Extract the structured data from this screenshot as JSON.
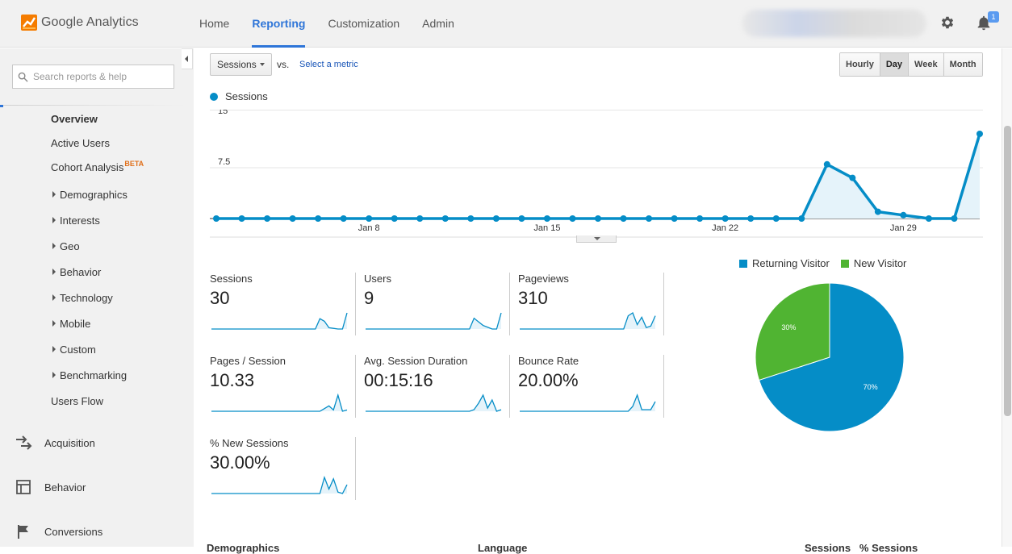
{
  "app": {
    "name": "Google Analytics"
  },
  "nav": [
    {
      "label": "Home",
      "active": false
    },
    {
      "label": "Reporting",
      "active": true
    },
    {
      "label": "Customization",
      "active": false
    },
    {
      "label": "Admin",
      "active": false
    }
  ],
  "notifications": {
    "badge": "1"
  },
  "sidebar": {
    "search_placeholder": "Search reports & help",
    "sub_items": [
      {
        "label": "Overview",
        "bold": true
      },
      {
        "label": "Active Users"
      },
      {
        "label": "Cohort Analysis",
        "badge": "BETA"
      }
    ],
    "caret_items": [
      "Demographics",
      "Interests",
      "Geo",
      "Behavior",
      "Technology",
      "Mobile",
      "Custom",
      "Benchmarking"
    ],
    "users_flow": "Users Flow",
    "sections": [
      "Acquisition",
      "Behavior",
      "Conversions"
    ]
  },
  "toolbar": {
    "metric": "Sessions",
    "vs": "vs.",
    "select_metric": "Select a metric",
    "time_buttons": [
      {
        "label": "Hourly",
        "active": false
      },
      {
        "label": "Day",
        "active": true
      },
      {
        "label": "Week",
        "active": false
      },
      {
        "label": "Month",
        "active": false
      }
    ]
  },
  "colors": {
    "accent": "#2e75d8",
    "series": "#058dc7",
    "new_visitor": "#50b432",
    "bg": "#f1f1f1"
  },
  "chart_data": [
    {
      "type": "area",
      "series": [
        {
          "name": "Sessions",
          "values": [
            0,
            0,
            0,
            0,
            0,
            0,
            0,
            0,
            0,
            0,
            0,
            0,
            0,
            0,
            0,
            0,
            0,
            0,
            0,
            0,
            0,
            0,
            0,
            0,
            8,
            6,
            1,
            0.5,
            0,
            0,
            12.5
          ]
        }
      ],
      "x_labels": [
        {
          "label": "Jan 8",
          "index": 6
        },
        {
          "label": "Jan 15",
          "index": 13
        },
        {
          "label": "Jan 22",
          "index": 20
        },
        {
          "label": "Jan 29",
          "index": 27
        }
      ],
      "y_ticks": [
        "15",
        "7.5"
      ],
      "ylim": [
        0,
        15
      ],
      "grid": true
    },
    {
      "type": "pie",
      "labels": [
        "Returning Visitor",
        "New Visitor"
      ],
      "values": [
        70,
        30
      ],
      "data_labels": [
        "70%",
        "30%"
      ],
      "colors": [
        "#058dc7",
        "#50b432"
      ],
      "legend": "top"
    }
  ],
  "scorecards": [
    {
      "label": "Sessions",
      "value": "30",
      "spark": [
        0,
        0,
        0,
        0,
        0,
        0,
        0,
        0,
        0,
        0,
        0,
        0,
        0,
        0,
        0,
        0,
        0,
        0,
        0,
        0,
        0,
        0,
        0,
        0,
        8,
        6,
        1,
        0.5,
        0,
        0,
        12.5
      ]
    },
    {
      "label": "Users",
      "value": "9",
      "spark": [
        0,
        0,
        0,
        0,
        0,
        0,
        0,
        0,
        0,
        0,
        0,
        0,
        0,
        0,
        0,
        0,
        0,
        0,
        0,
        0,
        0,
        0,
        0,
        0,
        6,
        4,
        2,
        1,
        0,
        0,
        9
      ]
    },
    {
      "label": "Pageviews",
      "value": "310",
      "spark": [
        0,
        0,
        0,
        0,
        0,
        0,
        0,
        0,
        0,
        0,
        0,
        0,
        0,
        0,
        0,
        0,
        0,
        0,
        0,
        0,
        0,
        0,
        0,
        0,
        9,
        11,
        3,
        8,
        1,
        2,
        9
      ]
    },
    {
      "label": "Pages / Session",
      "value": "10.33",
      "spark": [
        0,
        0,
        0,
        0,
        0,
        0,
        0,
        0,
        0,
        0,
        0,
        0,
        0,
        0,
        0,
        0,
        0,
        0,
        0,
        0,
        0,
        0,
        0,
        0,
        0,
        2,
        4,
        1,
        12,
        0,
        1
      ]
    },
    {
      "label": "Avg. Session Duration",
      "value": "00:15:16",
      "spark": [
        0,
        0,
        0,
        0,
        0,
        0,
        0,
        0,
        0,
        0,
        0,
        0,
        0,
        0,
        0,
        0,
        0,
        0,
        0,
        0,
        0,
        0,
        0,
        0,
        1,
        5,
        10,
        2,
        7,
        0,
        1
      ]
    },
    {
      "label": "Bounce Rate",
      "value": "20.00%",
      "spark": [
        0,
        0,
        0,
        0,
        0,
        0,
        0,
        0,
        0,
        0,
        0,
        0,
        0,
        0,
        0,
        0,
        0,
        0,
        0,
        0,
        0,
        0,
        0,
        0,
        0,
        3,
        10,
        1,
        1,
        1,
        6
      ]
    },
    {
      "label": "% New Sessions",
      "value": "30.00%",
      "spark": [
        0,
        0,
        0,
        0,
        0,
        0,
        0,
        0,
        0,
        0,
        0,
        0,
        0,
        0,
        0,
        0,
        0,
        0,
        0,
        0,
        0,
        0,
        0,
        0,
        0,
        11,
        3,
        10,
        1,
        0,
        6
      ]
    }
  ],
  "bottom": {
    "col1": "Demographics",
    "col2": "Language",
    "col3": "Sessions   % Sessions"
  }
}
